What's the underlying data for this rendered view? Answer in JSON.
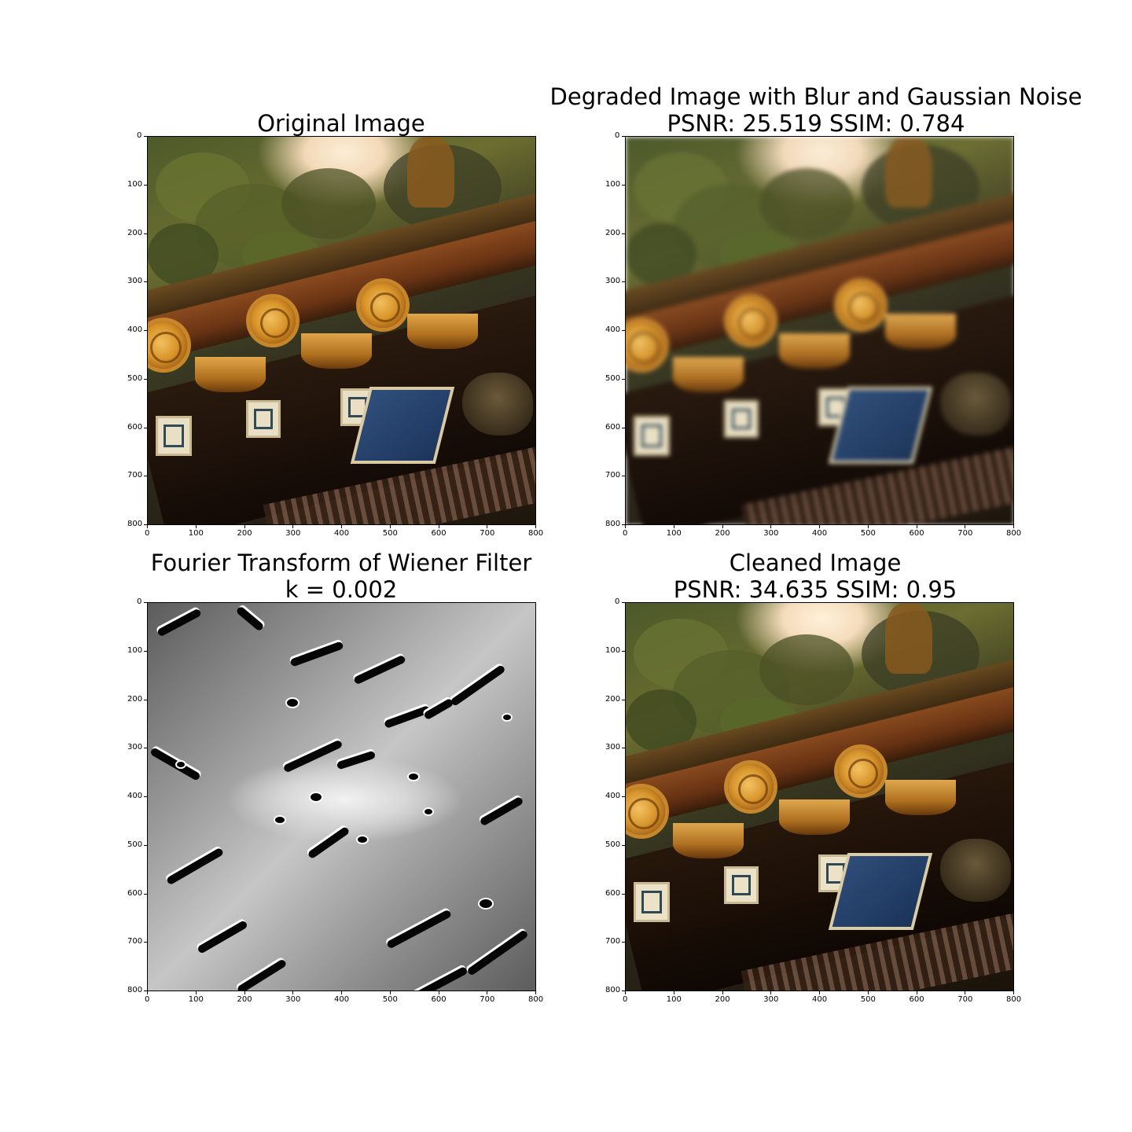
{
  "panels": [
    {
      "id": "original",
      "title_line1": "Original Image",
      "title_line2": ""
    },
    {
      "id": "degraded",
      "title_line1": "Degraded Image with Blur and Gaussian Noise",
      "title_line2": "PSNR: 25.519  SSIM: 0.784"
    },
    {
      "id": "filter",
      "title_line1": "Fourier Transform of Wiener Filter",
      "title_line2": "k = 0.002"
    },
    {
      "id": "cleaned",
      "title_line1": "Cleaned Image",
      "title_line2": "PSNR: 34.635  SSIM: 0.95"
    }
  ],
  "axes": {
    "x_ticks": [
      "0",
      "100",
      "200",
      "300",
      "400",
      "500",
      "600",
      "700",
      "800"
    ],
    "y_ticks": [
      "0",
      "100",
      "200",
      "300",
      "400",
      "500",
      "600",
      "700",
      "800"
    ],
    "range": [
      0,
      800
    ]
  }
}
